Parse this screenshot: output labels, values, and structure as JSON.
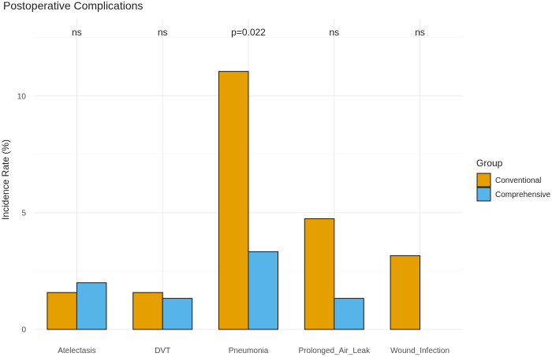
{
  "chart_data": {
    "type": "bar",
    "title": "Postoperative Complications",
    "xlabel": "",
    "ylabel": "Incidence Rate (%)",
    "categories": [
      "Atelectasis",
      "DVT",
      "Pneumonia",
      "Prolonged_Air_Leak",
      "Wound_Infection"
    ],
    "series": [
      {
        "name": "Conventional",
        "color": "#E69F00",
        "values": [
          1.58,
          1.58,
          11.05,
          4.74,
          3.16
        ]
      },
      {
        "name": "Comprehensive",
        "color": "#56B4E9",
        "values": [
          2.0,
          1.33,
          3.33,
          1.33,
          0.0
        ]
      }
    ],
    "significance": [
      "ns",
      "ns",
      "p=0.022",
      "ns",
      "ns"
    ],
    "y_ticks": [
      0,
      5,
      10
    ],
    "ylim": [
      0,
      13.3
    ],
    "grid": true,
    "legend": {
      "title": "Group",
      "position": "right"
    }
  }
}
